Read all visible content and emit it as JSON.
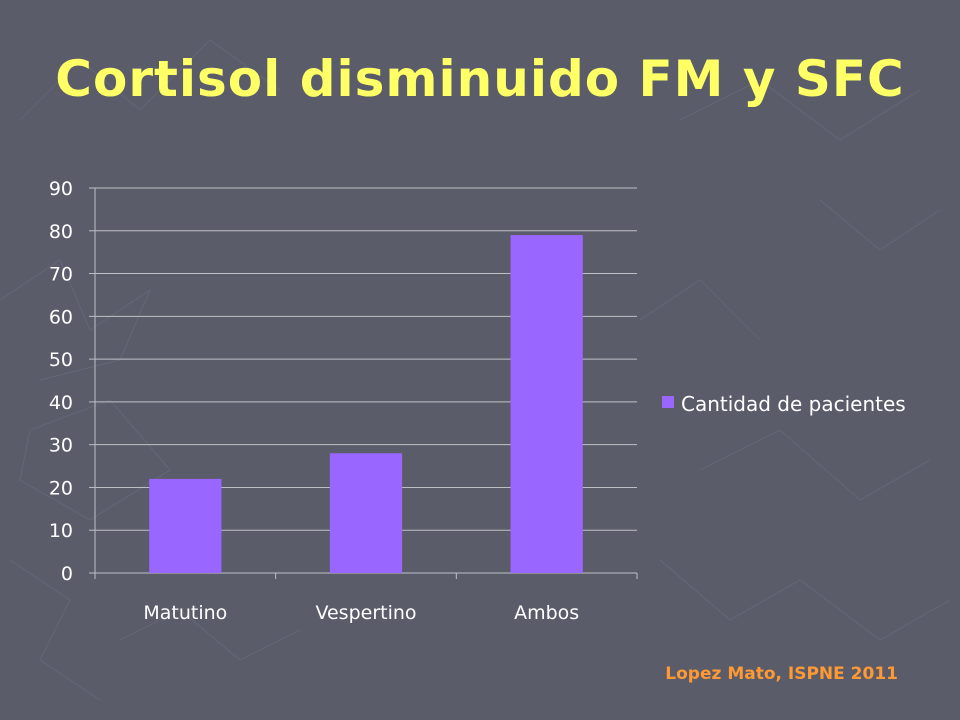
{
  "slide": {
    "title": "Cortisol disminuido FM y SFC",
    "citation": "Lopez Mato, ISPNE 2011"
  },
  "colors": {
    "background": "#5a5c6a",
    "title": "#ffff66",
    "citation": "#ff9933",
    "bar": "#9966ff",
    "gridline": "#bfc0c6",
    "text": "#ffffff"
  },
  "chart_data": {
    "type": "bar",
    "title": "",
    "xlabel": "",
    "ylabel": "",
    "categories": [
      "Matutino",
      "Vespertino",
      "Ambos"
    ],
    "series": [
      {
        "name": "Cantidad de pacientes",
        "values": [
          22,
          28,
          79
        ]
      }
    ],
    "ylim": [
      0,
      90
    ],
    "yticks": [
      0,
      10,
      20,
      30,
      40,
      50,
      60,
      70,
      80,
      90
    ],
    "grid": true,
    "legend": "right"
  }
}
